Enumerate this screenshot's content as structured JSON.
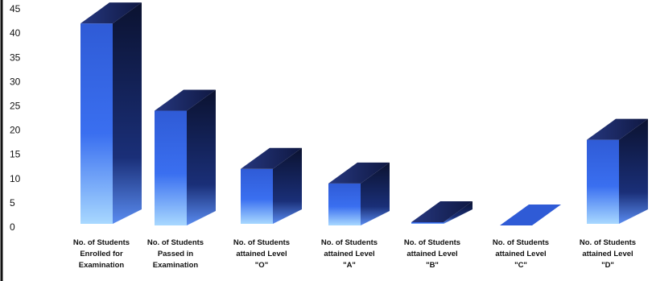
{
  "chart_data": {
    "type": "bar",
    "style": "3d-column",
    "title": "",
    "xlabel": "",
    "ylabel": "",
    "ylim": [
      0,
      45
    ],
    "yticks": [
      0,
      5,
      10,
      15,
      20,
      25,
      30,
      35,
      40,
      45
    ],
    "grid": false,
    "categories": [
      [
        "No. of Students",
        "Enrolled for",
        "Examination"
      ],
      [
        "No. of Students",
        "Passed in",
        "Examination"
      ],
      [
        "No. of Students",
        "attained Level",
        "\"O\""
      ],
      [
        "No. of Students",
        "attained Level",
        "\"A\""
      ],
      [
        "No. of Students",
        "attained Level",
        "\"B\""
      ],
      [
        "No. of Students",
        "attained Level",
        "\"C\""
      ],
      [
        "No. of Students",
        "attained Level",
        "\"D\""
      ]
    ],
    "values": [
      42,
      24,
      12,
      9,
      1,
      0,
      18
    ],
    "colors": {
      "front_top": "#2f5bd6",
      "front_mid": "#3a6ff0",
      "front_bottom": "#9fd3ff",
      "side_top": "#0b1230",
      "side_bottom": "#4a7fe0",
      "top_face": "#1c2a66",
      "axis": "#111111"
    }
  }
}
